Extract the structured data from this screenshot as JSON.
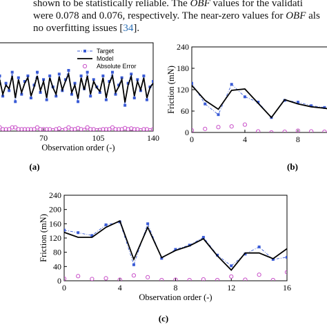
{
  "paragraph": {
    "line1_a": "shown to be statistically reliable. The ",
    "line1_b": "OBF",
    "line1_c": " values for the validati",
    "line2": "were 0.078 and 0.076, respectively. The near-zero values for ",
    "line2_b": "OBF",
    "line2_c": " als",
    "line3_a": "no overfitting issues [",
    "line3_ref": "34",
    "line3_b": "]."
  },
  "colors": {
    "target": "#3a5bd6",
    "model": "#000000",
    "error": "#c84fc8"
  },
  "chart_data": [
    {
      "id": "a",
      "type": "line",
      "panel_label": "(a)",
      "xlabel": "Observation order (-)",
      "ylabel": "",
      "x_ticks": [
        "70",
        "105",
        "140"
      ],
      "xlim": [
        40,
        140
      ],
      "ylim": [
        0,
        240
      ],
      "legend": [
        "Target",
        "Model",
        "Absolute Error"
      ],
      "legend_position": "top-right",
      "series": [
        {
          "name": "Target",
          "x": [
            42,
            44,
            46,
            48,
            50,
            52,
            54,
            56,
            58,
            60,
            62,
            64,
            66,
            68,
            70,
            72,
            74,
            76,
            78,
            80,
            82,
            84,
            86,
            88,
            90,
            92,
            94,
            96,
            98,
            100,
            102,
            104,
            106,
            108,
            110,
            112,
            114,
            116,
            118,
            120,
            122,
            124,
            126,
            128,
            130,
            132,
            134,
            136,
            138,
            140
          ],
          "y": [
            150,
            95,
            130,
            110,
            160,
            80,
            145,
            100,
            135,
            150,
            90,
            125,
            160,
            105,
            140,
            85,
            150,
            120,
            95,
            155,
            110,
            140,
            165,
            100,
            130,
            80,
            150,
            115,
            160,
            95,
            140,
            120,
            105,
            150,
            85,
            135,
            160,
            100,
            125,
            145,
            70,
            130,
            155,
            90,
            140,
            110,
            150,
            85,
            120,
            135
          ]
        },
        {
          "name": "Model",
          "x": [
            42,
            44,
            46,
            48,
            50,
            52,
            54,
            56,
            58,
            60,
            62,
            64,
            66,
            68,
            70,
            72,
            74,
            76,
            78,
            80,
            82,
            84,
            86,
            88,
            90,
            92,
            94,
            96,
            98,
            100,
            102,
            104,
            106,
            108,
            110,
            112,
            114,
            116,
            118,
            120,
            122,
            124,
            126,
            128,
            130,
            132,
            134,
            136,
            138,
            140
          ],
          "y": [
            140,
            100,
            125,
            115,
            150,
            90,
            140,
            105,
            130,
            145,
            95,
            120,
            150,
            110,
            135,
            90,
            145,
            118,
            100,
            148,
            112,
            135,
            155,
            105,
            125,
            88,
            145,
            112,
            150,
            100,
            135,
            118,
            108,
            145,
            90,
            130,
            150,
            105,
            120,
            140,
            78,
            125,
            148,
            95,
            135,
            112,
            145,
            90,
            118,
            130
          ]
        },
        {
          "name": "Absolute Error",
          "x": [
            42,
            44,
            46,
            48,
            50,
            52,
            54,
            56,
            58,
            60,
            62,
            64,
            66,
            68,
            70,
            72,
            74,
            76,
            78,
            80,
            82,
            84,
            86,
            88,
            90,
            92,
            94,
            96,
            98,
            100,
            102,
            104,
            106,
            108,
            110,
            112,
            114,
            116,
            118,
            120,
            122,
            124,
            126,
            128,
            130,
            132,
            134,
            136,
            138,
            140
          ],
          "y": [
            10,
            5,
            5,
            5,
            10,
            10,
            5,
            5,
            5,
            5,
            5,
            5,
            10,
            5,
            5,
            5,
            5,
            2,
            5,
            7,
            2,
            5,
            10,
            5,
            5,
            8,
            5,
            3,
            10,
            5,
            5,
            2,
            3,
            5,
            5,
            5,
            10,
            5,
            5,
            5,
            8,
            5,
            7,
            5,
            5,
            2,
            5,
            5,
            2,
            5
          ]
        }
      ]
    },
    {
      "id": "b",
      "type": "line",
      "panel_label": "(b)",
      "xlabel": "",
      "ylabel": "Friction (mN)",
      "x_ticks": [
        "0",
        "4",
        "8"
      ],
      "y_ticks": [
        "0",
        "60",
        "120",
        "180",
        "240"
      ],
      "xlim": [
        0,
        10.5
      ],
      "ylim": [
        0,
        240
      ],
      "series": [
        {
          "name": "Target",
          "x": [
            0,
            1,
            2,
            3,
            4,
            5,
            6,
            7,
            8,
            9,
            10,
            10.5
          ],
          "y": [
            138,
            80,
            50,
            135,
            100,
            85,
            42,
            90,
            85,
            75,
            70,
            65
          ]
        },
        {
          "name": "Model",
          "x": [
            0,
            1,
            2,
            3,
            4,
            5,
            6,
            7,
            8,
            9,
            10,
            10.5
          ],
          "y": [
            132,
            90,
            65,
            118,
            122,
            82,
            42,
            92,
            80,
            72,
            68,
            65
          ]
        },
        {
          "name": "Absolute Error",
          "x": [
            0,
            1,
            2,
            3,
            4,
            5,
            6,
            7,
            8,
            9,
            10
          ],
          "y": [
            6,
            10,
            15,
            17,
            22,
            3,
            0,
            2,
            5,
            3,
            2
          ]
        }
      ]
    },
    {
      "id": "c",
      "type": "line",
      "panel_label": "(c)",
      "xlabel": "Observation order (-)",
      "ylabel": "Friction (mN)",
      "x_ticks": [
        "0",
        "4",
        "8",
        "12",
        "16"
      ],
      "y_ticks": [
        "0",
        "40",
        "80",
        "120",
        "160",
        "200",
        "240"
      ],
      "xlim": [
        0,
        16
      ],
      "ylim": [
        0,
        240
      ],
      "series": [
        {
          "name": "Target",
          "x": [
            0,
            1,
            2,
            3,
            4,
            5,
            6,
            7,
            8,
            9,
            10,
            11,
            12,
            13,
            14,
            15,
            16
          ],
          "y": [
            142,
            135,
            127,
            157,
            165,
            45,
            160,
            63,
            88,
            100,
            122,
            72,
            42,
            75,
            95,
            60,
            66
          ]
        },
        {
          "name": "Model",
          "x": [
            0,
            1,
            2,
            3,
            4,
            5,
            6,
            7,
            8,
            9,
            10,
            11,
            12,
            13,
            14,
            15,
            16
          ],
          "y": [
            136,
            122,
            122,
            150,
            168,
            60,
            150,
            65,
            85,
            98,
            118,
            70,
            30,
            78,
            78,
            62,
            90
          ]
        },
        {
          "name": "Absolute Error",
          "x": [
            0,
            1,
            2,
            3,
            4,
            5,
            6,
            7,
            8,
            9,
            10,
            11,
            12,
            13,
            14,
            15,
            16
          ],
          "y": [
            6,
            13,
            5,
            7,
            3,
            15,
            10,
            2,
            3,
            2,
            4,
            2,
            12,
            3,
            17,
            2,
            24
          ]
        }
      ]
    }
  ]
}
